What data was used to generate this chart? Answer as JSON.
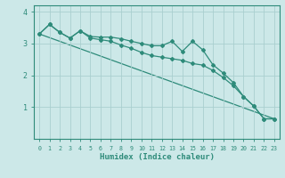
{
  "xlabel": "Humidex (Indice chaleur)",
  "background_color": "#cce8e8",
  "line_color": "#2e8b7a",
  "grid_color": "#aacfcf",
  "xlim": [
    -0.5,
    23.5
  ],
  "ylim": [
    0,
    4.2
  ],
  "yticks": [
    1,
    2,
    3,
    4
  ],
  "xticks": [
    0,
    1,
    2,
    3,
    4,
    5,
    6,
    7,
    8,
    9,
    10,
    11,
    12,
    13,
    14,
    15,
    16,
    17,
    18,
    19,
    20,
    21,
    22,
    23
  ],
  "series1_x": [
    0,
    1,
    2,
    3,
    4,
    5,
    6,
    7,
    8,
    9,
    10,
    11,
    12,
    13,
    14,
    15,
    16,
    17,
    18,
    19,
    20,
    21,
    22,
    23
  ],
  "series1_y": [
    3.3,
    3.6,
    3.35,
    3.17,
    3.4,
    3.22,
    3.2,
    3.2,
    3.15,
    3.07,
    3.0,
    2.93,
    2.93,
    3.07,
    2.75,
    3.07,
    2.8,
    2.33,
    2.07,
    1.77,
    1.33,
    1.03,
    0.63,
    0.63
  ],
  "series2_x": [
    0,
    1,
    2,
    3,
    4,
    5,
    6,
    7,
    8,
    9,
    10,
    11,
    12,
    13,
    14,
    15,
    16,
    17,
    18,
    19,
    20,
    21,
    22,
    23
  ],
  "series2_y": [
    3.3,
    3.6,
    3.35,
    3.17,
    3.4,
    3.17,
    3.12,
    3.07,
    2.95,
    2.85,
    2.72,
    2.62,
    2.57,
    2.52,
    2.47,
    2.37,
    2.32,
    2.15,
    1.93,
    1.67,
    1.33,
    1.03,
    0.63,
    0.63
  ],
  "series3_x": [
    0,
    23
  ],
  "series3_y": [
    3.3,
    0.63
  ]
}
